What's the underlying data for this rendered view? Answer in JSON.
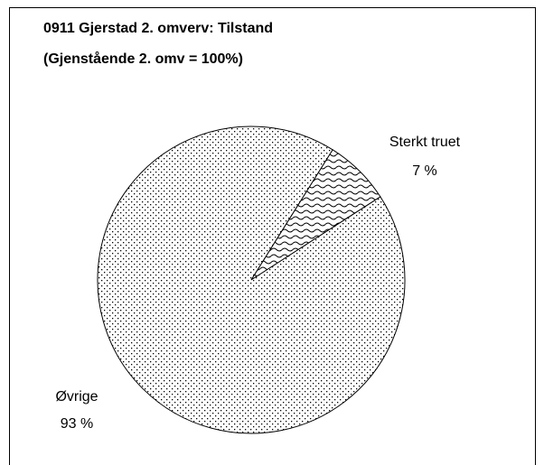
{
  "chart_data": {
    "type": "pie",
    "title": "0911 Gjerstad 2. omverv: Tilstand",
    "subtitle": "(Gjenstående 2. omv = 100%)",
    "categories": [
      "Sterkt truet",
      "Øvrige"
    ],
    "values": [
      7,
      93
    ],
    "value_labels": [
      "7 %",
      "93 %"
    ],
    "patterns": [
      "wave",
      "dots"
    ],
    "color": "#000000"
  }
}
